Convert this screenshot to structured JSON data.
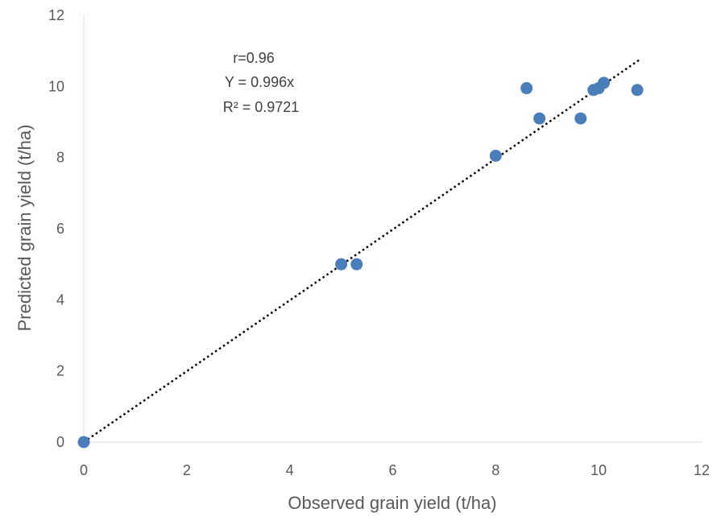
{
  "chart_data": {
    "type": "scatter",
    "xlabel": "Observed grain yield (t/ha)",
    "ylabel": "Predicted grain yield (t/ha)",
    "xlim": [
      0,
      12
    ],
    "ylim": [
      0,
      12
    ],
    "xticks": [
      0,
      2,
      4,
      6,
      8,
      10,
      12
    ],
    "yticks": [
      0,
      2,
      4,
      6,
      8,
      10,
      12
    ],
    "grid": false,
    "marker_color": "#4a7ebb",
    "trendline": {
      "type": "linear",
      "slope": 0.996,
      "x_range": [
        0,
        10.8
      ],
      "style": "dotted",
      "color": "#000000"
    },
    "annotations": [
      "r=0.96",
      "Y = 0.996x",
      "R² = 0.9721"
    ],
    "points": [
      {
        "x": 0,
        "y": 0
      },
      {
        "x": 5.0,
        "y": 5.0
      },
      {
        "x": 5.3,
        "y": 5.0
      },
      {
        "x": 8.0,
        "y": 8.05
      },
      {
        "x": 8.6,
        "y": 9.95
      },
      {
        "x": 8.85,
        "y": 9.1
      },
      {
        "x": 9.65,
        "y": 9.1
      },
      {
        "x": 9.9,
        "y": 9.9
      },
      {
        "x": 10.0,
        "y": 9.95
      },
      {
        "x": 10.1,
        "y": 10.1
      },
      {
        "x": 10.75,
        "y": 9.9
      }
    ]
  }
}
